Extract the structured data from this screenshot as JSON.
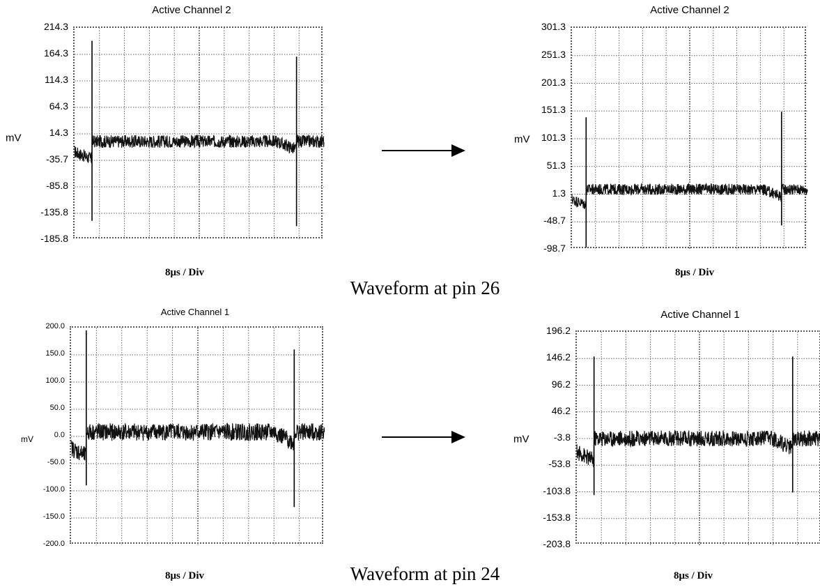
{
  "captions": {
    "top": "Waveform at pin 26",
    "bottom": "Waveform at pin 24"
  },
  "chart_data": [
    {
      "type": "line",
      "title": "Active Channel 2",
      "ylabel": "mV",
      "xlabel": "8μs / Div",
      "ylim": [
        -185.8,
        214.3
      ],
      "yticks": [
        "214.3",
        "164.3",
        "114.3",
        "64.3",
        "14.3",
        "-35.7",
        "-85.8",
        "-135.8",
        "-185.8"
      ],
      "baseline": 0,
      "x_divisions": 10,
      "spikes": [
        {
          "x_div": 0.7,
          "low": -150,
          "high": 190
        },
        {
          "x_div": 8.9,
          "low": -160,
          "high": 160
        }
      ],
      "noise": 12
    },
    {
      "type": "line",
      "title": "Active Channel 2",
      "ylabel": "mV",
      "xlabel": "8μs / Div",
      "ylim": [
        -98.7,
        301.3
      ],
      "yticks": [
        "301.3",
        "251.3",
        "201.3",
        "151.3",
        "101.3",
        "51.3",
        "1.3",
        "-48.7",
        "-98.7"
      ],
      "baseline": 10,
      "x_divisions": 10,
      "spikes": [
        {
          "x_div": 0.6,
          "low": -95,
          "high": 140
        },
        {
          "x_div": 8.9,
          "low": -55,
          "high": 150
        }
      ],
      "noise": 10
    },
    {
      "type": "line",
      "title": "Active Channel 1",
      "ylabel": "mV",
      "xlabel": "8μs / Div",
      "ylim": [
        -200.0,
        200.0
      ],
      "yticks": [
        "200.0",
        "150.0",
        "100.0",
        "50.0",
        "0.0",
        "-50.0",
        "-100.0",
        "-150.0",
        "-200.0"
      ],
      "baseline": 8,
      "x_divisions": 10,
      "spikes": [
        {
          "x_div": 0.6,
          "low": -90,
          "high": 195
        },
        {
          "x_div": 8.8,
          "low": -130,
          "high": 160
        }
      ],
      "noise": 16
    },
    {
      "type": "line",
      "title": "Active Channel 1",
      "ylabel": "mV",
      "xlabel": "8μs / Div",
      "ylim": [
        -203.8,
        196.2
      ],
      "yticks": [
        "196.2",
        "146.2",
        "96.2",
        "46.2",
        "-3.8",
        "-53.8",
        "-103.8",
        "-153.8",
        "-203.8"
      ],
      "baseline": -3.8,
      "x_divisions": 10,
      "spikes": [
        {
          "x_div": 0.7,
          "low": -110,
          "high": 150
        },
        {
          "x_div": 8.8,
          "low": -105,
          "high": 150
        }
      ],
      "noise": 15
    }
  ]
}
